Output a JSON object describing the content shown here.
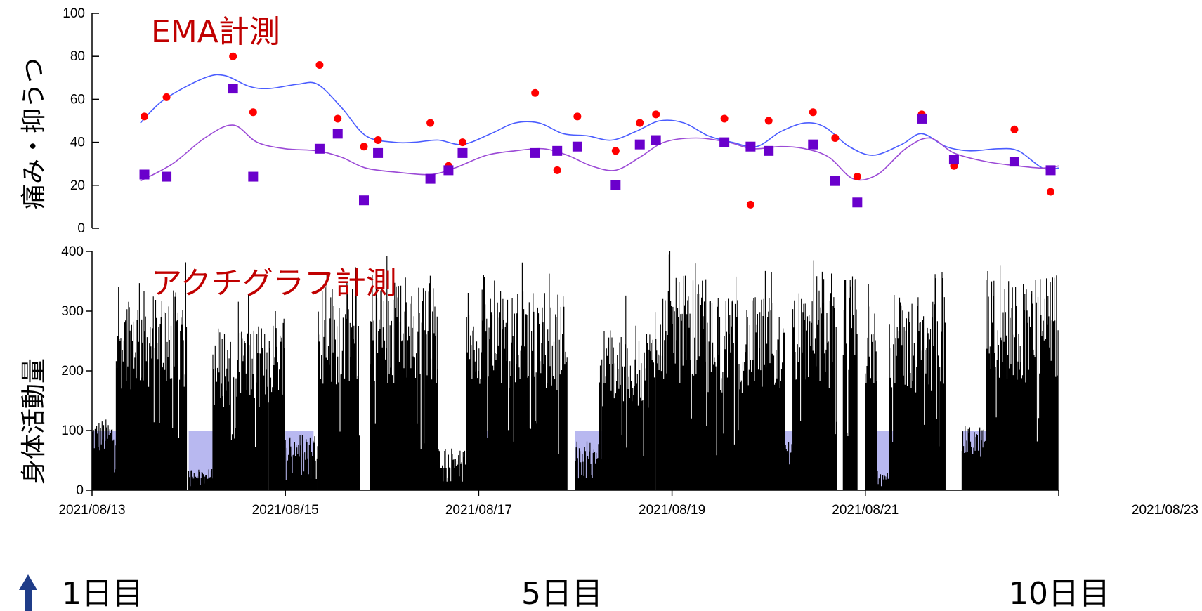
{
  "chart_data": [
    {
      "type": "scatter",
      "title": "EMA計測",
      "ylabel": "痛み・抑うつ",
      "ylim": [
        0,
        100
      ],
      "yticks": [
        0,
        20,
        40,
        60,
        80,
        100
      ],
      "xlim": [
        "2021/08/13",
        "2021/08/23"
      ],
      "grid": false,
      "series": [
        {
          "color": "#ff0000",
          "marker": "circle",
          "points": [
            [
              "2021/08/13 13:00",
              52
            ],
            [
              "2021/08/13 18:30",
              61
            ],
            [
              "2021/08/14 11:00",
              80
            ],
            [
              "2021/08/14 16:00",
              54
            ],
            [
              "2021/08/15 08:30",
              76
            ],
            [
              "2021/08/15 13:00",
              51
            ],
            [
              "2021/08/15 19:30",
              38
            ],
            [
              "2021/08/15 23:00",
              41
            ],
            [
              "2021/08/16 12:00",
              49
            ],
            [
              "2021/08/16 16:30",
              29
            ],
            [
              "2021/08/16 20:00",
              40
            ],
            [
              "2021/08/17 14:00",
              63
            ],
            [
              "2021/08/17 19:30",
              27
            ],
            [
              "2021/08/18 00:30",
              52
            ],
            [
              "2021/08/18 10:00",
              36
            ],
            [
              "2021/08/18 16:00",
              49
            ],
            [
              "2021/08/18 20:00",
              53
            ],
            [
              "2021/08/19 13:00",
              51
            ],
            [
              "2021/08/19 19:30",
              11
            ],
            [
              "2021/08/20 00:00",
              50
            ],
            [
              "2021/08/20 11:00",
              54
            ],
            [
              "2021/08/20 16:30",
              42
            ],
            [
              "2021/08/20 22:00",
              24
            ],
            [
              "2021/08/21 14:00",
              53
            ],
            [
              "2021/08/21 22:00",
              29
            ],
            [
              "2021/08/22 13:00",
              46
            ],
            [
              "2021/08/22 22:00",
              17
            ]
          ]
        },
        {
          "color": "#6a00cc",
          "marker": "square",
          "points": [
            [
              "2021/08/13 13:00",
              25
            ],
            [
              "2021/08/13 18:30",
              24
            ],
            [
              "2021/08/14 11:00",
              65
            ],
            [
              "2021/08/14 16:00",
              24
            ],
            [
              "2021/08/15 08:30",
              37
            ],
            [
              "2021/08/15 13:00",
              44
            ],
            [
              "2021/08/15 19:30",
              13
            ],
            [
              "2021/08/15 23:00",
              35
            ],
            [
              "2021/08/16 12:00",
              23
            ],
            [
              "2021/08/16 16:30",
              27
            ],
            [
              "2021/08/16 20:00",
              35
            ],
            [
              "2021/08/17 14:00",
              35
            ],
            [
              "2021/08/17 19:30",
              36
            ],
            [
              "2021/08/18 00:30",
              38
            ],
            [
              "2021/08/18 10:00",
              20
            ],
            [
              "2021/08/18 16:00",
              39
            ],
            [
              "2021/08/18 20:00",
              41
            ],
            [
              "2021/08/19 13:00",
              40
            ],
            [
              "2021/08/19 19:30",
              38
            ],
            [
              "2021/08/20 00:00",
              36
            ],
            [
              "2021/08/20 11:00",
              39
            ],
            [
              "2021/08/20 16:30",
              22
            ],
            [
              "2021/08/20 22:00",
              12
            ],
            [
              "2021/08/21 14:00",
              51
            ],
            [
              "2021/08/21 22:00",
              32
            ],
            [
              "2021/08/22 13:00",
              31
            ],
            [
              "2021/08/22 22:00",
              27
            ]
          ]
        },
        {
          "type": "line",
          "color": "#4a5cff",
          "points": [
            [
              "2021/08/13 12:00",
              49
            ],
            [
              "2021/08/13 18:00",
              60
            ],
            [
              "2021/08/14 04:00",
              70
            ],
            [
              "2021/08/14 09:00",
              71
            ],
            [
              "2021/08/14 15:00",
              66
            ],
            [
              "2021/08/14 20:00",
              65
            ],
            [
              "2021/08/15 03:00",
              67
            ],
            [
              "2021/08/15 08:00",
              67
            ],
            [
              "2021/08/15 14:00",
              56
            ],
            [
              "2021/08/15 20:00",
              43
            ],
            [
              "2021/08/16 03:00",
              40
            ],
            [
              "2021/08/16 08:00",
              40
            ],
            [
              "2021/08/16 14:00",
              41
            ],
            [
              "2021/08/16 20:00",
              39
            ],
            [
              "2021/08/17 03:00",
              44
            ],
            [
              "2021/08/17 09:00",
              49
            ],
            [
              "2021/08/17 15:00",
              49
            ],
            [
              "2021/08/17 21:00",
              44
            ],
            [
              "2021/08/18 03:00",
              43
            ],
            [
              "2021/08/18 09:00",
              41
            ],
            [
              "2021/08/18 15:00",
              45
            ],
            [
              "2021/08/18 21:00",
              50
            ],
            [
              "2021/08/19 03:00",
              49
            ],
            [
              "2021/08/19 09:00",
              43
            ],
            [
              "2021/08/19 15:00",
              40
            ],
            [
              "2021/08/19 21:00",
              38
            ],
            [
              "2021/08/20 03:00",
              45
            ],
            [
              "2021/08/20 09:00",
              49
            ],
            [
              "2021/08/20 14:00",
              47
            ],
            [
              "2021/08/20 20:00",
              38
            ],
            [
              "2021/08/21 02:00",
              34
            ],
            [
              "2021/08/21 09:00",
              39
            ],
            [
              "2021/08/21 14:00",
              44
            ],
            [
              "2021/08/21 20:00",
              38
            ],
            [
              "2021/08/22 02:00",
              36
            ],
            [
              "2021/08/22 09:00",
              37
            ],
            [
              "2021/08/22 14:00",
              36
            ],
            [
              "2021/08/22 20:00",
              28
            ],
            [
              "2021/08/23 00:00",
              28
            ]
          ]
        },
        {
          "type": "line",
          "color": "#9b4ad6",
          "points": [
            [
              "2021/08/13 12:00",
              22
            ],
            [
              "2021/08/13 20:00",
              30
            ],
            [
              "2021/08/14 04:00",
              42
            ],
            [
              "2021/08/14 11:00",
              48
            ],
            [
              "2021/08/14 17:00",
              40
            ],
            [
              "2021/08/15 00:00",
              37
            ],
            [
              "2021/08/15 08:00",
              36
            ],
            [
              "2021/08/15 14:00",
              33
            ],
            [
              "2021/08/15 20:00",
              28
            ],
            [
              "2021/08/16 04:00",
              26
            ],
            [
              "2021/08/16 12:00",
              25
            ],
            [
              "2021/08/16 18:00",
              28
            ],
            [
              "2021/08/17 02:00",
              34
            ],
            [
              "2021/08/17 09:00",
              36
            ],
            [
              "2021/08/17 16:00",
              37
            ],
            [
              "2021/08/17 22:00",
              34
            ],
            [
              "2021/08/18 04:00",
              29
            ],
            [
              "2021/08/18 10:00",
              27
            ],
            [
              "2021/08/18 16:00",
              33
            ],
            [
              "2021/08/18 22:00",
              40
            ],
            [
              "2021/08/19 06:00",
              42
            ],
            [
              "2021/08/19 14:00",
              40
            ],
            [
              "2021/08/19 20:00",
              37
            ],
            [
              "2021/08/20 03:00",
              38
            ],
            [
              "2021/08/20 09:00",
              37
            ],
            [
              "2021/08/20 15:00",
              33
            ],
            [
              "2021/08/20 21:00",
              23
            ],
            [
              "2021/08/21 03:00",
              25
            ],
            [
              "2021/08/21 10:00",
              37
            ],
            [
              "2021/08/21 16:00",
              42
            ],
            [
              "2021/08/21 22:00",
              35
            ],
            [
              "2021/08/22 06:00",
              31
            ],
            [
              "2021/08/22 14:00",
              29
            ],
            [
              "2021/08/22 20:00",
              28
            ],
            [
              "2021/08/23 00:00",
              29
            ]
          ]
        }
      ]
    },
    {
      "type": "bar",
      "title": "アクチグラフ計測",
      "ylabel": "身体活動量",
      "ylim": [
        0,
        400
      ],
      "yticks": [
        0,
        100,
        200,
        300,
        400
      ],
      "xlim": [
        "2021/08/13",
        "2021/08/23"
      ],
      "xticks": [
        "2021/08/13",
        "2021/08/15",
        "2021/08/17",
        "2021/08/19",
        "2021/08/21",
        "2021/08/23"
      ],
      "bar_color": "#000000",
      "segments": [
        {
          "start": "2021/08/13 00:00",
          "end": "2021/08/13 06:00",
          "level": 100
        },
        {
          "start": "2021/08/13 06:00",
          "end": "2021/08/13 23:30",
          "level": 280
        },
        {
          "start": "2021/08/14 00:00",
          "end": "2021/08/14 06:00",
          "level": 30
        },
        {
          "start": "2021/08/14 06:00",
          "end": "2021/08/14 20:00",
          "level": 230
        },
        {
          "start": "2021/08/14 20:00",
          "end": "2021/08/15 00:00",
          "level": 260
        },
        {
          "start": "2021/08/15 00:00",
          "end": "2021/08/15 08:00",
          "level": 80
        },
        {
          "start": "2021/08/15 08:00",
          "end": "2021/08/15 18:30",
          "level": 290
        },
        {
          "start": "2021/08/15 21:00",
          "end": "2021/08/16 14:00",
          "level": 290
        },
        {
          "start": "2021/08/16 14:00",
          "end": "2021/08/16 21:00",
          "level": 60
        },
        {
          "start": "2021/08/16 21:00",
          "end": "2021/08/17 22:00",
          "level": 280
        },
        {
          "start": "2021/08/18 00:00",
          "end": "2021/08/18 06:00",
          "level": 70
        },
        {
          "start": "2021/08/18 06:00",
          "end": "2021/08/18 20:00",
          "level": 230
        },
        {
          "start": "2021/08/18 20:00",
          "end": "2021/08/19 08:00",
          "level": 300
        },
        {
          "start": "2021/08/19 08:00",
          "end": "2021/08/20 04:00",
          "level": 270
        },
        {
          "start": "2021/08/20 04:00",
          "end": "2021/08/20 06:00",
          "level": 70
        },
        {
          "start": "2021/08/20 06:00",
          "end": "2021/08/20 17:00",
          "level": 280
        },
        {
          "start": "2021/08/20 18:30",
          "end": "2021/08/20 22:00",
          "level": 300
        },
        {
          "start": "2021/08/21 00:00",
          "end": "2021/08/21 03:00",
          "level": 260
        },
        {
          "start": "2021/08/21 03:00",
          "end": "2021/08/21 06:00",
          "level": 30
        },
        {
          "start": "2021/08/21 06:00",
          "end": "2021/08/21 20:00",
          "level": 270
        },
        {
          "start": "2021/08/22 00:00",
          "end": "2021/08/22 06:00",
          "level": 90
        },
        {
          "start": "2021/08/22 06:00",
          "end": "2021/08/23 00:00",
          "level": 300
        }
      ],
      "shaded_periods": {
        "color": "#b8b8f0",
        "value": 100,
        "periods": [
          [
            "2021/08/13 00:00",
            "2021/08/13 07:00"
          ],
          [
            "2021/08/14 00:00",
            "2021/08/14 07:00"
          ],
          [
            "2021/08/15 00:00",
            "2021/08/15 07:00"
          ],
          [
            "2021/08/16 00:00",
            "2021/08/16 07:00"
          ],
          [
            "2021/08/17 00:00",
            "2021/08/17 07:00"
          ],
          [
            "2021/08/18 00:00",
            "2021/08/18 07:00"
          ],
          [
            "2021/08/19 00:00",
            "2021/08/19 07:00"
          ],
          [
            "2021/08/20 00:00",
            "2021/08/20 07:00"
          ],
          [
            "2021/08/21 00:00",
            "2021/08/21 07:00"
          ],
          [
            "2021/08/22 00:00",
            "2021/08/22 07:00"
          ]
        ]
      }
    }
  ],
  "day_labels": [
    {
      "text": "1日目",
      "date": "2021/08/13"
    },
    {
      "text": "5日目",
      "date": "2021/08/17"
    },
    {
      "text": "10日目",
      "date": "2021/08/22"
    }
  ],
  "colors": {
    "arrow": "#1f3c88",
    "title": "#c00000"
  }
}
